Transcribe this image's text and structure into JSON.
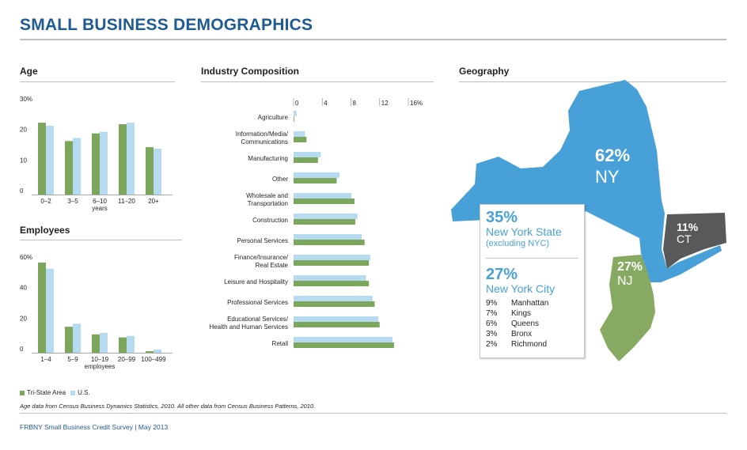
{
  "title": "SMALL BUSINESS DEMOGRAPHICS",
  "colors": {
    "tri_state": "#7da65d",
    "us": "#b6daf0",
    "title": "#1f5b93",
    "ny": "#47a1d8",
    "nj": "#87aa63",
    "ct": "#58595b"
  },
  "legend": {
    "tri_state": "Tri-State Area",
    "us": "U.S."
  },
  "note": "Age data from Census Business Dynamics Statistics, 2010. All other data from Census Business Patterns, 2010.",
  "footer": "FRBNY Small Business Credit Survey  |  May 2013",
  "chart_data": [
    {
      "type": "bar",
      "title": "Age",
      "categories": [
        "0–2",
        "3–5",
        "6–10",
        "11–20",
        "20+"
      ],
      "xlabel": "years",
      "y_ticks": [
        "30%",
        "20",
        "10",
        "0"
      ],
      "ylim": [
        0,
        30
      ],
      "series": [
        {
          "name": "Tri-State Area",
          "values": [
            23.5,
            17.5,
            20,
            23,
            15.5
          ]
        },
        {
          "name": "U.S.",
          "values": [
            22.5,
            18.5,
            20.5,
            23.5,
            15
          ]
        }
      ]
    },
    {
      "type": "bar",
      "title": "Employees",
      "categories": [
        "1–4",
        "5–9",
        "10–19",
        "20–99",
        "100–499"
      ],
      "xlabel": "employees",
      "y_ticks": [
        "60%",
        "40",
        "20",
        "0"
      ],
      "ylim": [
        0,
        60
      ],
      "series": [
        {
          "name": "Tri-State Area",
          "values": [
            59,
            17,
            12,
            10,
            1
          ]
        },
        {
          "name": "U.S.",
          "values": [
            55,
            19,
            13,
            11,
            2
          ]
        }
      ]
    },
    {
      "type": "bar",
      "orientation": "horizontal",
      "title": "Industry Composition",
      "categories": [
        "Agriculture",
        "Information/Media/\nCommunications",
        "Manufacturing",
        "Other",
        "Wholesale and\nTransportation",
        "Construction",
        "Personal Services",
        "Finance/Insurance/\nReal Estate",
        "Leisure and Hospitality",
        "Professional Services",
        "Educational Services/\nHealth and Human Services",
        "Retail"
      ],
      "x_ticks": [
        "0",
        "4",
        "8",
        "12",
        "16%"
      ],
      "xlim": [
        0,
        16
      ],
      "series": [
        {
          "name": "Tri-State Area",
          "values": [
            0.1,
            1.8,
            3.4,
            6.0,
            8.5,
            8.6,
            9.9,
            10.5,
            10.5,
            11.3,
            12.0,
            14.0
          ]
        },
        {
          "name": "U.S.",
          "values": [
            0.4,
            1.6,
            3.8,
            6.4,
            8.1,
            8.9,
            9.5,
            10.7,
            10.1,
            11.0,
            11.8,
            13.8
          ]
        }
      ]
    },
    {
      "type": "map",
      "title": "Geography",
      "regions": [
        {
          "pct": "62%",
          "label": "NY"
        },
        {
          "pct": "11%",
          "label": "CT"
        },
        {
          "pct": "27%",
          "label": "NJ"
        }
      ],
      "callout": {
        "nys_pct": "35%",
        "nys_label": "New York State",
        "nys_sub": "(excluding NYC)",
        "nyc_pct": "27%",
        "nyc_label": "New York City",
        "boroughs": [
          {
            "pct": "9%",
            "name": "Manhattan"
          },
          {
            "pct": "7%",
            "name": "Kings"
          },
          {
            "pct": "6%",
            "name": "Queens"
          },
          {
            "pct": "3%",
            "name": "Bronx"
          },
          {
            "pct": "2%",
            "name": "Richmond"
          }
        ]
      }
    }
  ]
}
